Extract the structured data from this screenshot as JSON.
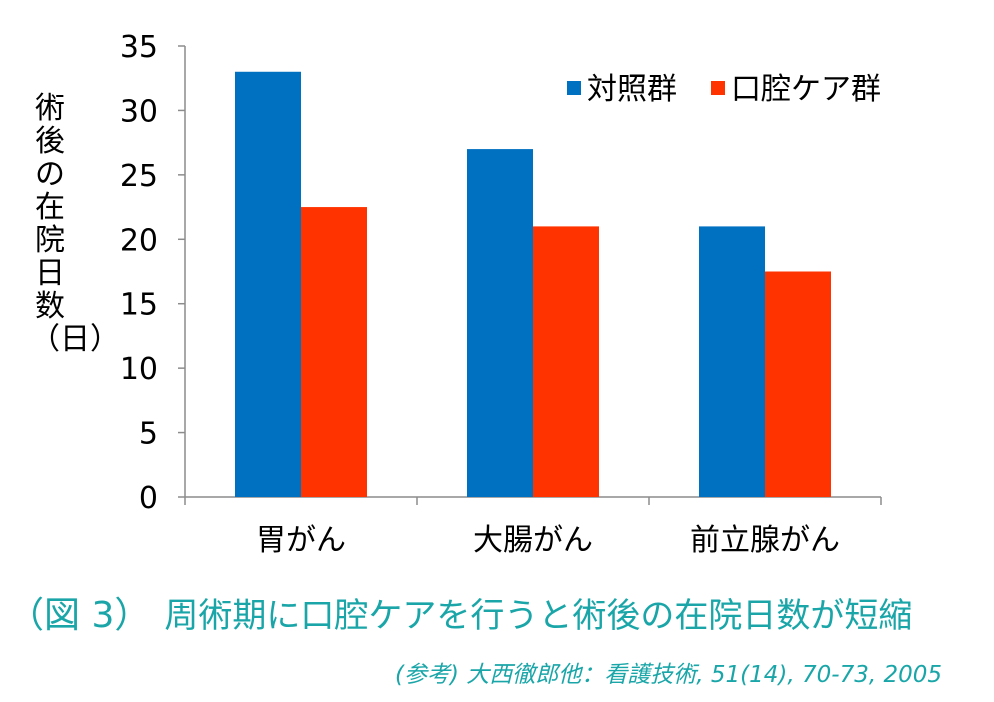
{
  "chart_data": {
    "type": "bar",
    "categories": [
      "胃がん",
      "大腸がん",
      "前立腺がん"
    ],
    "series": [
      {
        "name": "対照群",
        "color": "#0070c0",
        "values": [
          33,
          27,
          21
        ]
      },
      {
        "name": "口腔ケア群",
        "color": "#ff3300",
        "values": [
          22.5,
          21,
          17.5
        ]
      }
    ],
    "ylabel": "術後の在院日数（日）",
    "ylim": [
      0,
      35
    ],
    "yticks": [
      "0",
      "5",
      "10",
      "15",
      "20",
      "25",
      "30",
      "35"
    ],
    "grid": false,
    "legend_position": "top-right"
  },
  "caption": {
    "figure_label": "（図 3）",
    "text": "周術期に口腔ケアを行うと術後の在院日数が短縮"
  },
  "source": "(参考) 大西徹郎他：看護技術, 51(14), 70-73, 2005"
}
